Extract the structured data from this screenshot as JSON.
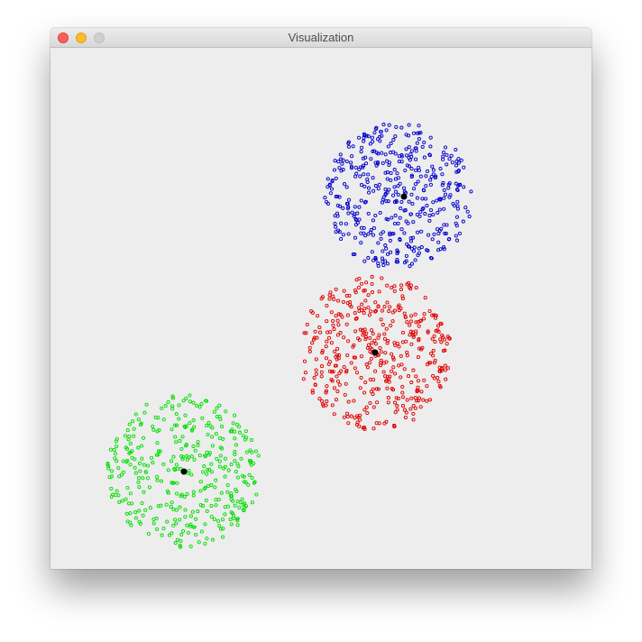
{
  "window": {
    "title": "Visualization",
    "controls": {
      "close_color": "#fe5f57",
      "minimize_color": "#febb2e",
      "zoom_color": "#d0d0d0"
    },
    "background": "#ededed"
  },
  "chart_data": {
    "type": "scatter",
    "title": "",
    "xlabel": "",
    "ylabel": "",
    "xlim": [
      0,
      600
    ],
    "ylim": [
      0,
      578
    ],
    "grid": false,
    "legend": "none",
    "series": [
      {
        "color": "#0000cc",
        "center": [
          386,
          165
        ],
        "radius": 82,
        "count": 430
      },
      {
        "color": "#e00000",
        "center": [
          360,
          338
        ],
        "radius": 86,
        "count": 430
      },
      {
        "color": "#00dd00",
        "center": [
          148,
          470
        ],
        "radius": 85,
        "count": 380
      }
    ],
    "centroids": [
      {
        "color": "#000000",
        "x": 392,
        "y": 165
      },
      {
        "color": "#000000",
        "x": 360,
        "y": 338
      },
      {
        "color": "#000000",
        "x": 148,
        "y": 470
      }
    ]
  }
}
